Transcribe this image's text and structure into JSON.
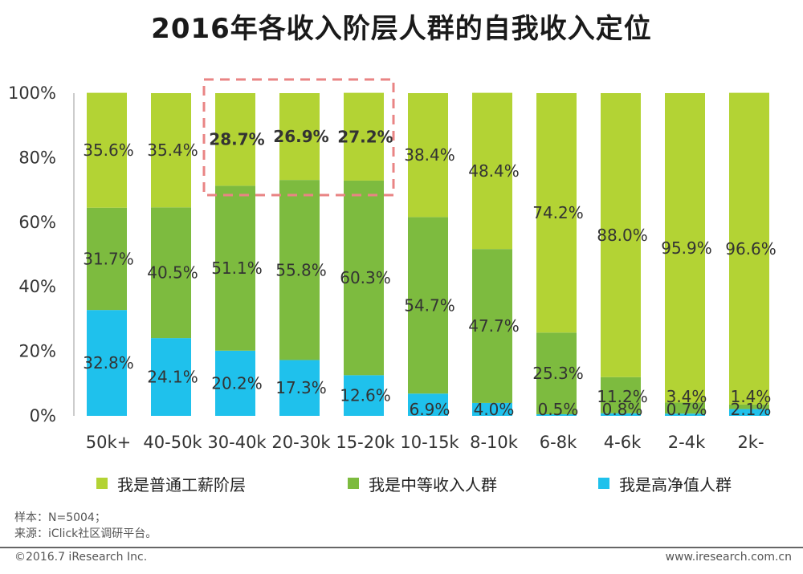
{
  "chart_data": {
    "type": "bar",
    "stacked": true,
    "title": "2016年各收入阶层人群的自我收入定位",
    "xlabel": "",
    "ylabel": "",
    "ylim": [
      0,
      100
    ],
    "yticks": [
      "0%",
      "20%",
      "40%",
      "60%",
      "80%",
      "100%"
    ],
    "categories": [
      "50k+",
      "40-50k",
      "30-40k",
      "20-30k",
      "15-20k",
      "10-15k",
      "8-10k",
      "6-8k",
      "4-6k",
      "2-4k",
      "2k-"
    ],
    "series": [
      {
        "name": "我是高净值人群",
        "color": "#1fc1ec",
        "values": [
          32.8,
          24.1,
          20.2,
          17.3,
          12.6,
          6.9,
          4.0,
          0.5,
          0.8,
          0.7,
          2.1
        ],
        "labels": [
          "32.8%",
          "24.1%",
          "20.2%",
          "17.3%",
          "12.6%",
          "6.9%",
          "4.0%",
          "0.5%",
          "0.8%",
          "0.7%",
          "2.1%"
        ]
      },
      {
        "name": "我是中等收入人群",
        "color": "#7dbb3f",
        "values": [
          31.7,
          40.5,
          51.1,
          55.8,
          60.3,
          54.7,
          47.7,
          25.3,
          11.2,
          3.4,
          1.4
        ],
        "labels": [
          "31.7%",
          "40.5%",
          "51.1%",
          "55.8%",
          "60.3%",
          "54.7%",
          "47.7%",
          "25.3%",
          "11.2%",
          "3.4%",
          "1.4%"
        ]
      },
      {
        "name": "我是普通工薪阶层",
        "color": "#b3d334",
        "values": [
          35.6,
          35.4,
          28.7,
          26.9,
          27.2,
          38.4,
          48.4,
          74.2,
          88.0,
          95.9,
          96.6
        ],
        "labels": [
          "35.6%",
          "35.4%",
          "28.7%",
          "26.9%",
          "27.2%",
          "38.4%",
          "48.4%",
          "74.2%",
          "88.0%",
          "95.9%",
          "96.6%"
        ]
      }
    ],
    "highlight": {
      "categories": [
        "30-40k",
        "20-30k",
        "15-20k"
      ],
      "series": "我是普通工薪阶层",
      "style": "dashed-box"
    },
    "legend_position": "bottom"
  },
  "footer": {
    "sample": "样本：N=5004；",
    "source": "来源：iClick社区调研平台。",
    "copyright": "©2016.7 iResearch  Inc.",
    "website": "www.iresearch.com.cn"
  }
}
